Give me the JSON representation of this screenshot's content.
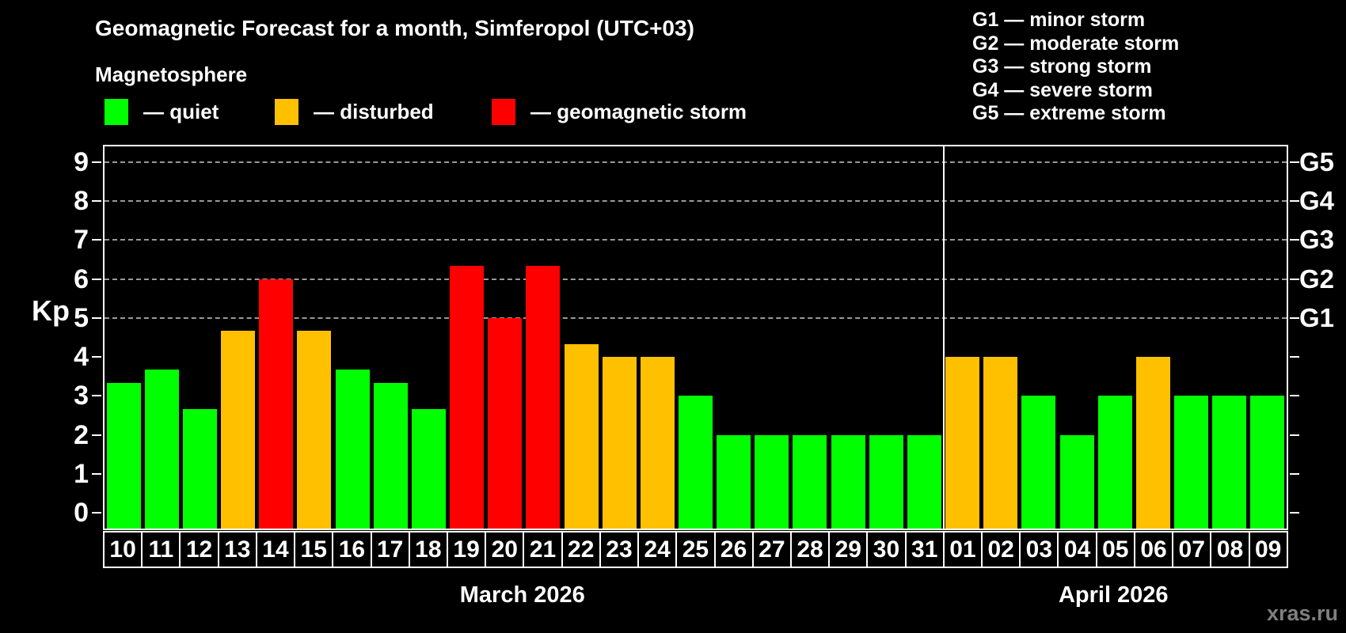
{
  "title": "Geomagnetic Forecast for a month, Simferopol (UTC+03)",
  "subtitle": "Magnetosphere",
  "legend": {
    "items": [
      {
        "label": "— quiet",
        "status": "quiet"
      },
      {
        "label": "— disturbed",
        "status": "disturbed"
      },
      {
        "label": "— geomagnetic storm",
        "status": "storm"
      }
    ]
  },
  "g_scale_legend": {
    "lines": [
      "G1 — minor storm",
      "G2 — moderate storm",
      "G3 — strong storm",
      "G4 — severe storm",
      "G5 — extreme storm"
    ]
  },
  "watermark": "xras.ru",
  "colors": {
    "quiet": "#00ff00",
    "disturbed": "#ffc000",
    "storm": "#ff0000",
    "background": "#000000",
    "grid": "#999999",
    "axis": "#ffffff"
  },
  "chart_data": {
    "type": "bar",
    "title": "Geomagnetic Forecast for a month, Simferopol (UTC+03)",
    "ylabel": "Kp",
    "ylim": [
      -0.4,
      9.4
    ],
    "yticks": [
      0,
      1,
      2,
      3,
      4,
      5,
      6,
      7,
      8,
      9
    ],
    "gridlines_at": [
      5,
      6,
      7,
      8,
      9
    ],
    "legend_position": "top",
    "g_labels": [
      {
        "kp": 5,
        "label": "G1"
      },
      {
        "kp": 6,
        "label": "G2"
      },
      {
        "kp": 7,
        "label": "G3"
      },
      {
        "kp": 8,
        "label": "G4"
      },
      {
        "kp": 9,
        "label": "G5"
      }
    ],
    "months": [
      {
        "label": "March 2026",
        "days": [
          {
            "date": "10",
            "kp": 3.33,
            "status": "quiet"
          },
          {
            "date": "11",
            "kp": 3.67,
            "status": "quiet"
          },
          {
            "date": "12",
            "kp": 2.67,
            "status": "quiet"
          },
          {
            "date": "13",
            "kp": 4.67,
            "status": "disturbed"
          },
          {
            "date": "14",
            "kp": 6.0,
            "status": "storm"
          },
          {
            "date": "15",
            "kp": 4.67,
            "status": "disturbed"
          },
          {
            "date": "16",
            "kp": 3.67,
            "status": "quiet"
          },
          {
            "date": "17",
            "kp": 3.33,
            "status": "quiet"
          },
          {
            "date": "18",
            "kp": 2.67,
            "status": "quiet"
          },
          {
            "date": "19",
            "kp": 6.33,
            "status": "storm"
          },
          {
            "date": "20",
            "kp": 5.0,
            "status": "storm"
          },
          {
            "date": "21",
            "kp": 6.33,
            "status": "storm"
          },
          {
            "date": "22",
            "kp": 4.33,
            "status": "disturbed"
          },
          {
            "date": "23",
            "kp": 4.0,
            "status": "disturbed"
          },
          {
            "date": "24",
            "kp": 4.0,
            "status": "disturbed"
          },
          {
            "date": "25",
            "kp": 3.0,
            "status": "quiet"
          },
          {
            "date": "26",
            "kp": 2.0,
            "status": "quiet"
          },
          {
            "date": "27",
            "kp": 2.0,
            "status": "quiet"
          },
          {
            "date": "28",
            "kp": 2.0,
            "status": "quiet"
          },
          {
            "date": "29",
            "kp": 2.0,
            "status": "quiet"
          },
          {
            "date": "30",
            "kp": 2.0,
            "status": "quiet"
          },
          {
            "date": "31",
            "kp": 2.0,
            "status": "quiet"
          }
        ]
      },
      {
        "label": "April 2026",
        "days": [
          {
            "date": "01",
            "kp": 4.0,
            "status": "disturbed"
          },
          {
            "date": "02",
            "kp": 4.0,
            "status": "disturbed"
          },
          {
            "date": "03",
            "kp": 3.0,
            "status": "quiet"
          },
          {
            "date": "04",
            "kp": 2.0,
            "status": "quiet"
          },
          {
            "date": "05",
            "kp": 3.0,
            "status": "quiet"
          },
          {
            "date": "06",
            "kp": 4.0,
            "status": "disturbed"
          },
          {
            "date": "07",
            "kp": 3.0,
            "status": "quiet"
          },
          {
            "date": "08",
            "kp": 3.0,
            "status": "quiet"
          },
          {
            "date": "09",
            "kp": 3.0,
            "status": "quiet"
          }
        ]
      }
    ]
  }
}
